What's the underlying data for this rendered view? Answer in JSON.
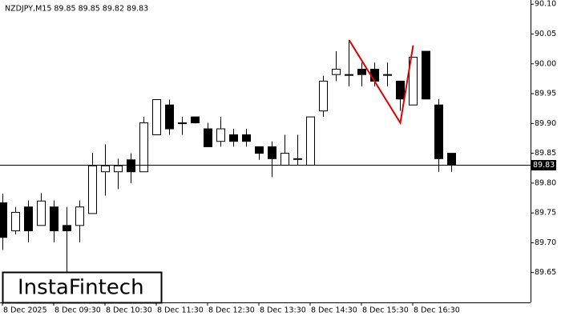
{
  "chart_data": {
    "type": "candlestick",
    "title": "NZDJPY,M15  89.85 89.85 89.82 89.83",
    "logo": "InstaFintech",
    "categories": [
      "8 Dec 2025",
      null,
      null,
      null,
      "8 Dec 09:30",
      null,
      null,
      null,
      "8 Dec 10:30",
      null,
      null,
      null,
      "8 Dec 11:30",
      null,
      null,
      null,
      "8 Dec 12:30",
      null,
      null,
      null,
      "8 Dec 13:30",
      null,
      null,
      null,
      "8 Dec 14:30",
      null,
      null,
      null,
      "8 Dec 15:30",
      null,
      null,
      null,
      "8 Dec 16:30",
      null,
      null,
      null
    ],
    "open": [
      89.767,
      89.72,
      89.76,
      89.729,
      89.76,
      89.729,
      89.729,
      89.749,
      89.819,
      89.819,
      89.839,
      89.819,
      89.881,
      89.931,
      89.901,
      89.911,
      89.891,
      89.87,
      89.881,
      89.881,
      89.861,
      89.861,
      89.83,
      89.841,
      89.83,
      89.921,
      89.982,
      89.982,
      89.991,
      89.991,
      89.982,
      89.971,
      89.931,
      90.021,
      89.931,
      89.85
    ],
    "high": [
      89.782,
      89.76,
      89.771,
      89.783,
      89.771,
      89.76,
      89.771,
      89.851,
      89.865,
      89.841,
      89.85,
      89.911,
      89.94,
      89.94,
      89.911,
      89.911,
      89.901,
      89.911,
      89.891,
      89.891,
      89.861,
      89.87,
      89.881,
      89.881,
      89.911,
      89.98,
      90.021,
      90.04,
      90.002,
      90.002,
      90.002,
      89.971,
      90.011,
      90.021,
      89.941,
      89.85
    ],
    "low": [
      89.688,
      89.714,
      89.701,
      89.729,
      89.701,
      89.65,
      89.701,
      89.749,
      89.779,
      89.79,
      89.8,
      89.819,
      89.881,
      89.881,
      89.881,
      89.9,
      89.861,
      89.861,
      89.861,
      89.861,
      89.839,
      89.81,
      89.83,
      89.83,
      89.83,
      89.911,
      89.971,
      89.962,
      89.962,
      89.962,
      89.962,
      89.921,
      89.931,
      89.941,
      89.819,
      89.819
    ],
    "close": [
      89.709,
      89.751,
      89.72,
      89.77,
      89.72,
      89.72,
      89.76,
      89.829,
      89.829,
      89.829,
      89.819,
      89.901,
      89.94,
      89.891,
      89.9,
      89.901,
      89.861,
      89.891,
      89.87,
      89.87,
      89.85,
      89.841,
      89.85,
      89.84,
      89.911,
      89.971,
      89.991,
      89.982,
      89.982,
      89.971,
      89.981,
      89.941,
      90.011,
      89.941,
      89.841,
      89.83
    ],
    "up_color": "#ffffff",
    "down_color": "#000000",
    "pattern": {
      "color": "#e00000",
      "x": [
        27,
        31,
        32
      ],
      "values": [
        90.04,
        89.901,
        90.031
      ]
    },
    "current_price": 89.83,
    "ylim": [
      89.6,
      90.107
    ],
    "yticks": [
      89.65,
      {
        "value": 89.7,
        "label": "89.70"
      },
      89.75,
      {
        "value": 89.8,
        "label": "89.80"
      },
      89.85,
      {
        "value": 89.9,
        "label": "89.90"
      },
      89.95,
      {
        "value": 90,
        "label": "90.00"
      },
      90.05,
      {
        "value": 90.1,
        "label": "90.10"
      }
    ],
    "grid": false
  }
}
